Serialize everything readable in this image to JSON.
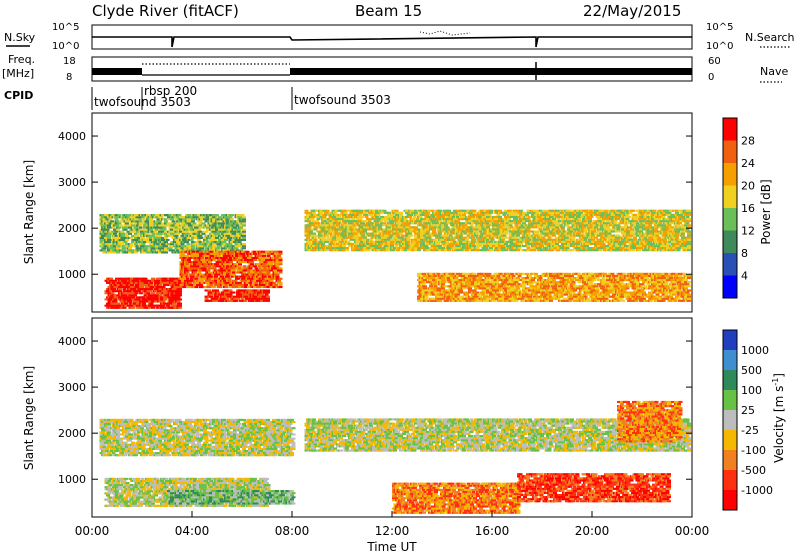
{
  "header": {
    "title": "Clyde River (fitACF)",
    "beam": "Beam 15",
    "date": "22/May/2015"
  },
  "nsky_panel": {
    "left_label": "N.Sky",
    "right_label": "N.Search",
    "left_ticks": [
      "10^5",
      "10^0"
    ],
    "right_ticks": [
      "10^5",
      "10^0"
    ]
  },
  "freq_panel": {
    "left_label_1": "Freq.",
    "left_label_2": "[MHz]",
    "right_label": "Nave",
    "left_ticks": [
      "18",
      "8"
    ],
    "right_ticks": [
      "60",
      "0"
    ]
  },
  "cpid": {
    "label": "CPID",
    "segments": [
      {
        "start_hour": 0,
        "name": "twofsound 3503"
      },
      {
        "start_hour": 2.0,
        "name": "rbsp 200"
      },
      {
        "start_hour": 8.0,
        "name": "twofsound 3503"
      }
    ]
  },
  "colors": {
    "power_scale": [
      "#0000ff",
      "#2a4fb5",
      "#3f8a5a",
      "#6abf59",
      "#f0d020",
      "#f5a000",
      "#f06010",
      "#ff0000"
    ],
    "velocity_scale": [
      "#1f3fbf",
      "#3f8fd0",
      "#2e8a5a",
      "#66c244",
      "#bdbdbd",
      "#f5b800",
      "#f08020",
      "#ff3010",
      "#ff0000"
    ]
  },
  "chart_data": [
    {
      "type": "heatmap",
      "name": "power",
      "ylabel": "Slant Range [km]",
      "xlim": [
        0,
        24
      ],
      "ylim": [
        180,
        4500
      ],
      "yticks": [
        "1000",
        "2000",
        "3000",
        "4000"
      ],
      "colorbar_label": "Power [dB]",
      "colorbar_ticks": [
        "4",
        "8",
        "12",
        "16",
        "20",
        "24",
        "28"
      ],
      "bands": [
        {
          "t0": 0.3,
          "t1": 6.0,
          "r0": 1450,
          "r1": 2300,
          "level": 3
        },
        {
          "t0": 0.5,
          "t1": 3.5,
          "r0": 250,
          "r1": 900,
          "level": 7
        },
        {
          "t0": 3.5,
          "t1": 7.5,
          "r0": 700,
          "r1": 1500,
          "level": 6
        },
        {
          "t0": 8.5,
          "t1": 23.8,
          "r0": 1500,
          "r1": 2400,
          "level": 4
        },
        {
          "t0": 13.0,
          "t1": 23.8,
          "r0": 400,
          "r1": 1000,
          "level": 5
        },
        {
          "t0": 4.5,
          "t1": 7.0,
          "r0": 400,
          "r1": 650,
          "level": 7
        }
      ]
    },
    {
      "type": "heatmap",
      "name": "velocity",
      "ylabel": "Slant Range [km]",
      "xlabel": "Time UT",
      "xticks": [
        "00:00",
        "04:00",
        "08:00",
        "12:00",
        "16:00",
        "20:00",
        "00:00"
      ],
      "yticks": [
        "1000",
        "2000",
        "3000",
        "4000"
      ],
      "colorbar_label": "Velocity [m s",
      "colorbar_label_sup": "-1",
      "colorbar_label_end": "]",
      "colorbar_ticks": [
        "1000",
        "500",
        "100",
        "25",
        "-25",
        "-100",
        "-500",
        "-1000"
      ],
      "bands": [
        {
          "t0": 0.3,
          "t1": 8.0,
          "r0": 1500,
          "r1": 2300,
          "level": 4
        },
        {
          "t0": 8.5,
          "t1": 23.8,
          "r0": 1600,
          "r1": 2300,
          "level": 4
        },
        {
          "t0": 0.5,
          "t1": 7.0,
          "r0": 400,
          "r1": 1000,
          "level": 4
        },
        {
          "t0": 3.0,
          "t1": 8.0,
          "r0": 450,
          "r1": 750,
          "level": 3
        },
        {
          "t0": 12.0,
          "t1": 17.0,
          "r0": 250,
          "r1": 900,
          "level": 6
        },
        {
          "t0": 17.0,
          "t1": 23.0,
          "r0": 500,
          "r1": 1100,
          "level": 7
        },
        {
          "t0": 21.0,
          "t1": 23.5,
          "r0": 1800,
          "r1": 2700,
          "level": 6
        }
      ]
    }
  ]
}
